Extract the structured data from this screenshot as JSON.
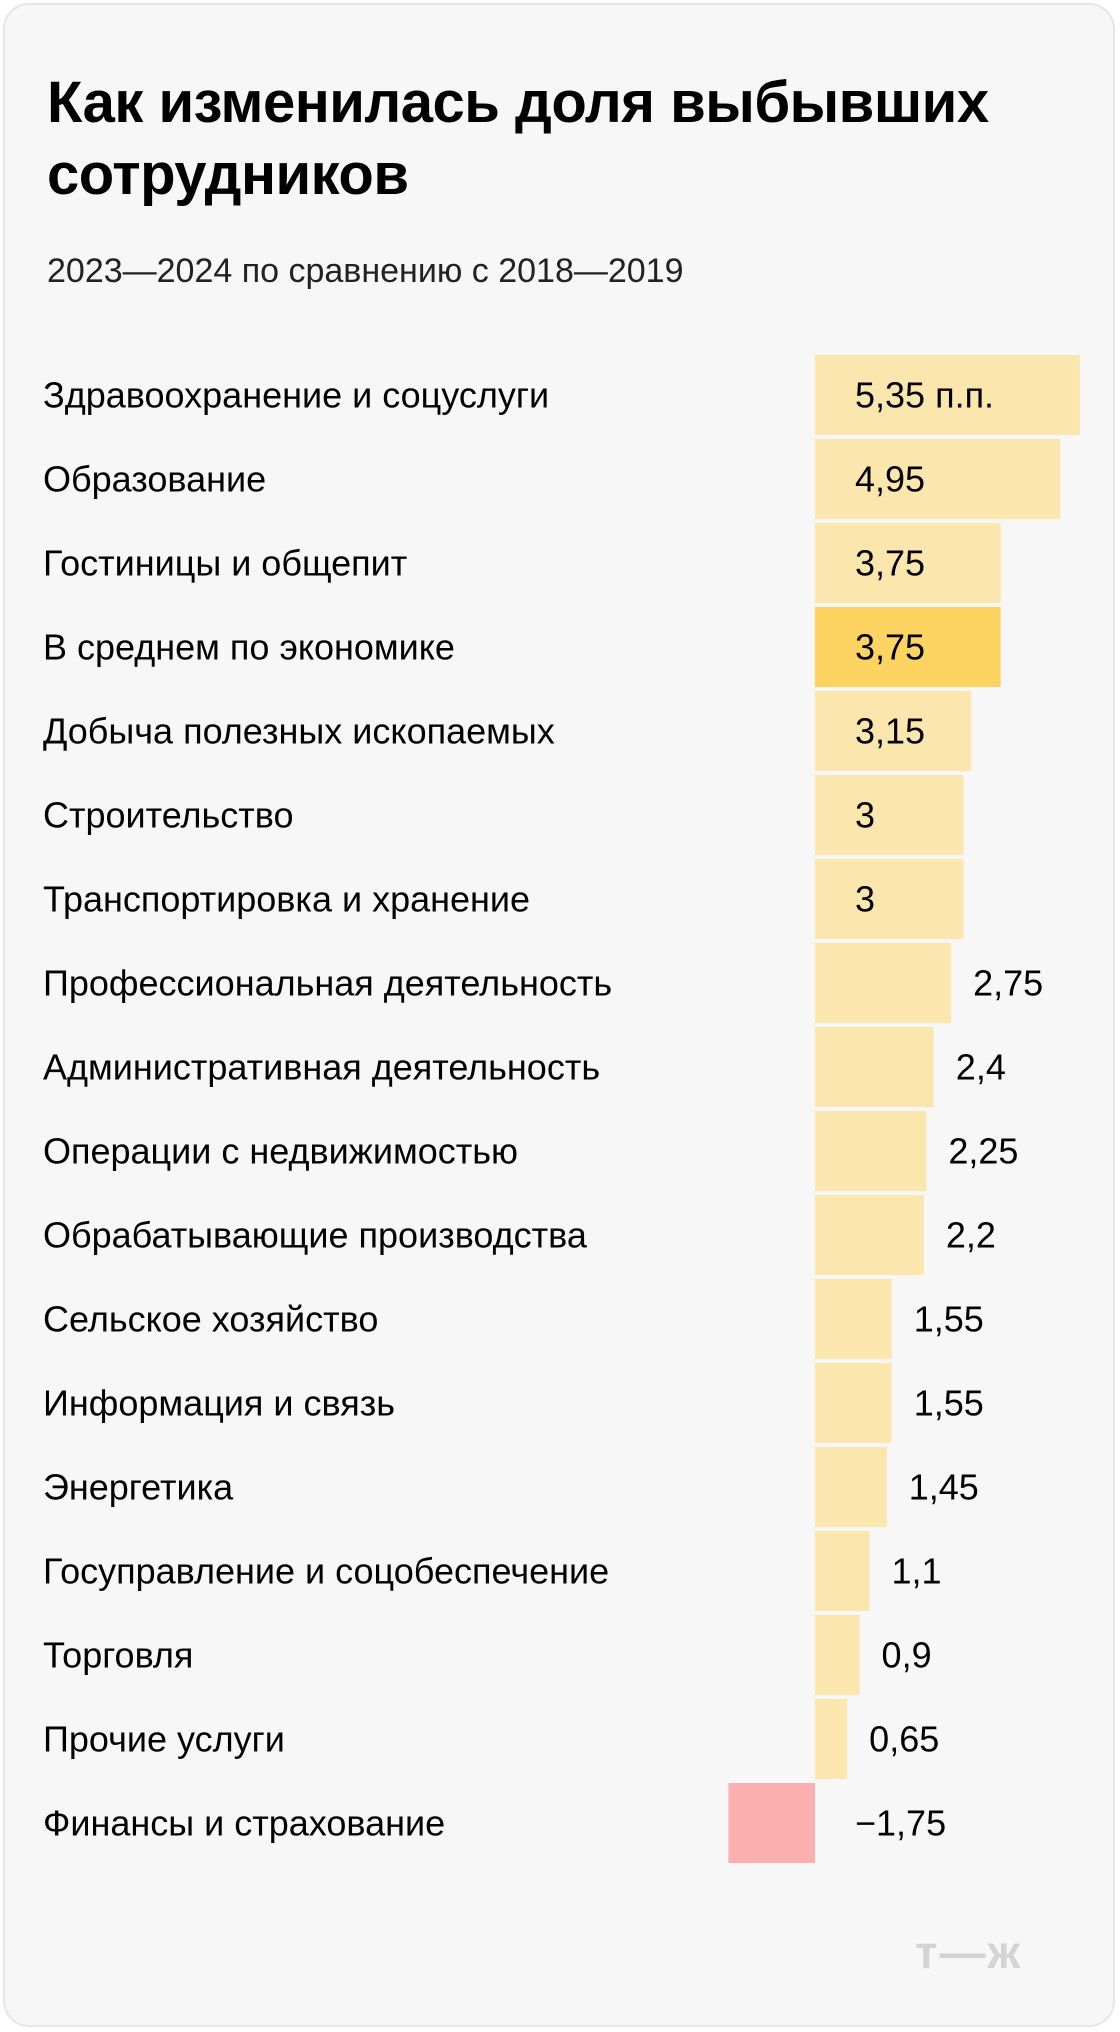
{
  "header": {
    "title": "Как изменилась доля выбывших сотрудников",
    "subtitle": "2023—2024 по сравнению с 2018—2019"
  },
  "logo_text": "т—ж",
  "colors": {
    "bar": "#fbe6ad",
    "highlight": "#fdd462",
    "negative": "#fbb0af",
    "text": "#000000"
  },
  "chart_data": {
    "type": "bar",
    "orientation": "horizontal",
    "title": "Как изменилась доля выбывших сотрудников",
    "subtitle": "2023—2024 по сравнению с 2018—2019",
    "unit": "п.п.",
    "categories": [
      "Здравоохранение и соцуслуги",
      "Образование",
      "Гостиницы и общепит",
      "В среднем по экономике",
      "Добыча полезных ископаемых",
      "Строительство",
      "Транспортировка и хранение",
      "Профессиональная деятельность",
      "Административная деятельность",
      "Операции с недвижимостью",
      "Обрабатывающие производства",
      "Сельское хозяйство",
      "Информация и связь",
      "Энергетика",
      "Госуправление и соцобеспечение",
      "Торговля",
      "Прочие услуги",
      "Финансы и страхование"
    ],
    "values": [
      5.35,
      4.95,
      3.75,
      3.75,
      3.15,
      3,
      3,
      2.75,
      2.4,
      2.25,
      2.2,
      1.55,
      1.55,
      1.45,
      1.1,
      0.9,
      0.65,
      -1.75
    ],
    "value_labels": [
      "5,35 п.п.",
      "4,95",
      "3,75",
      "3,75",
      "3,15",
      "3",
      "3",
      "2,75",
      "2,4",
      "2,25",
      "2,2",
      "1,55",
      "1,55",
      "1,45",
      "1,1",
      "0,9",
      "0,65",
      "−1,75"
    ],
    "highlight_category": "В среднем по экономике",
    "grid": false,
    "legend": "none"
  }
}
